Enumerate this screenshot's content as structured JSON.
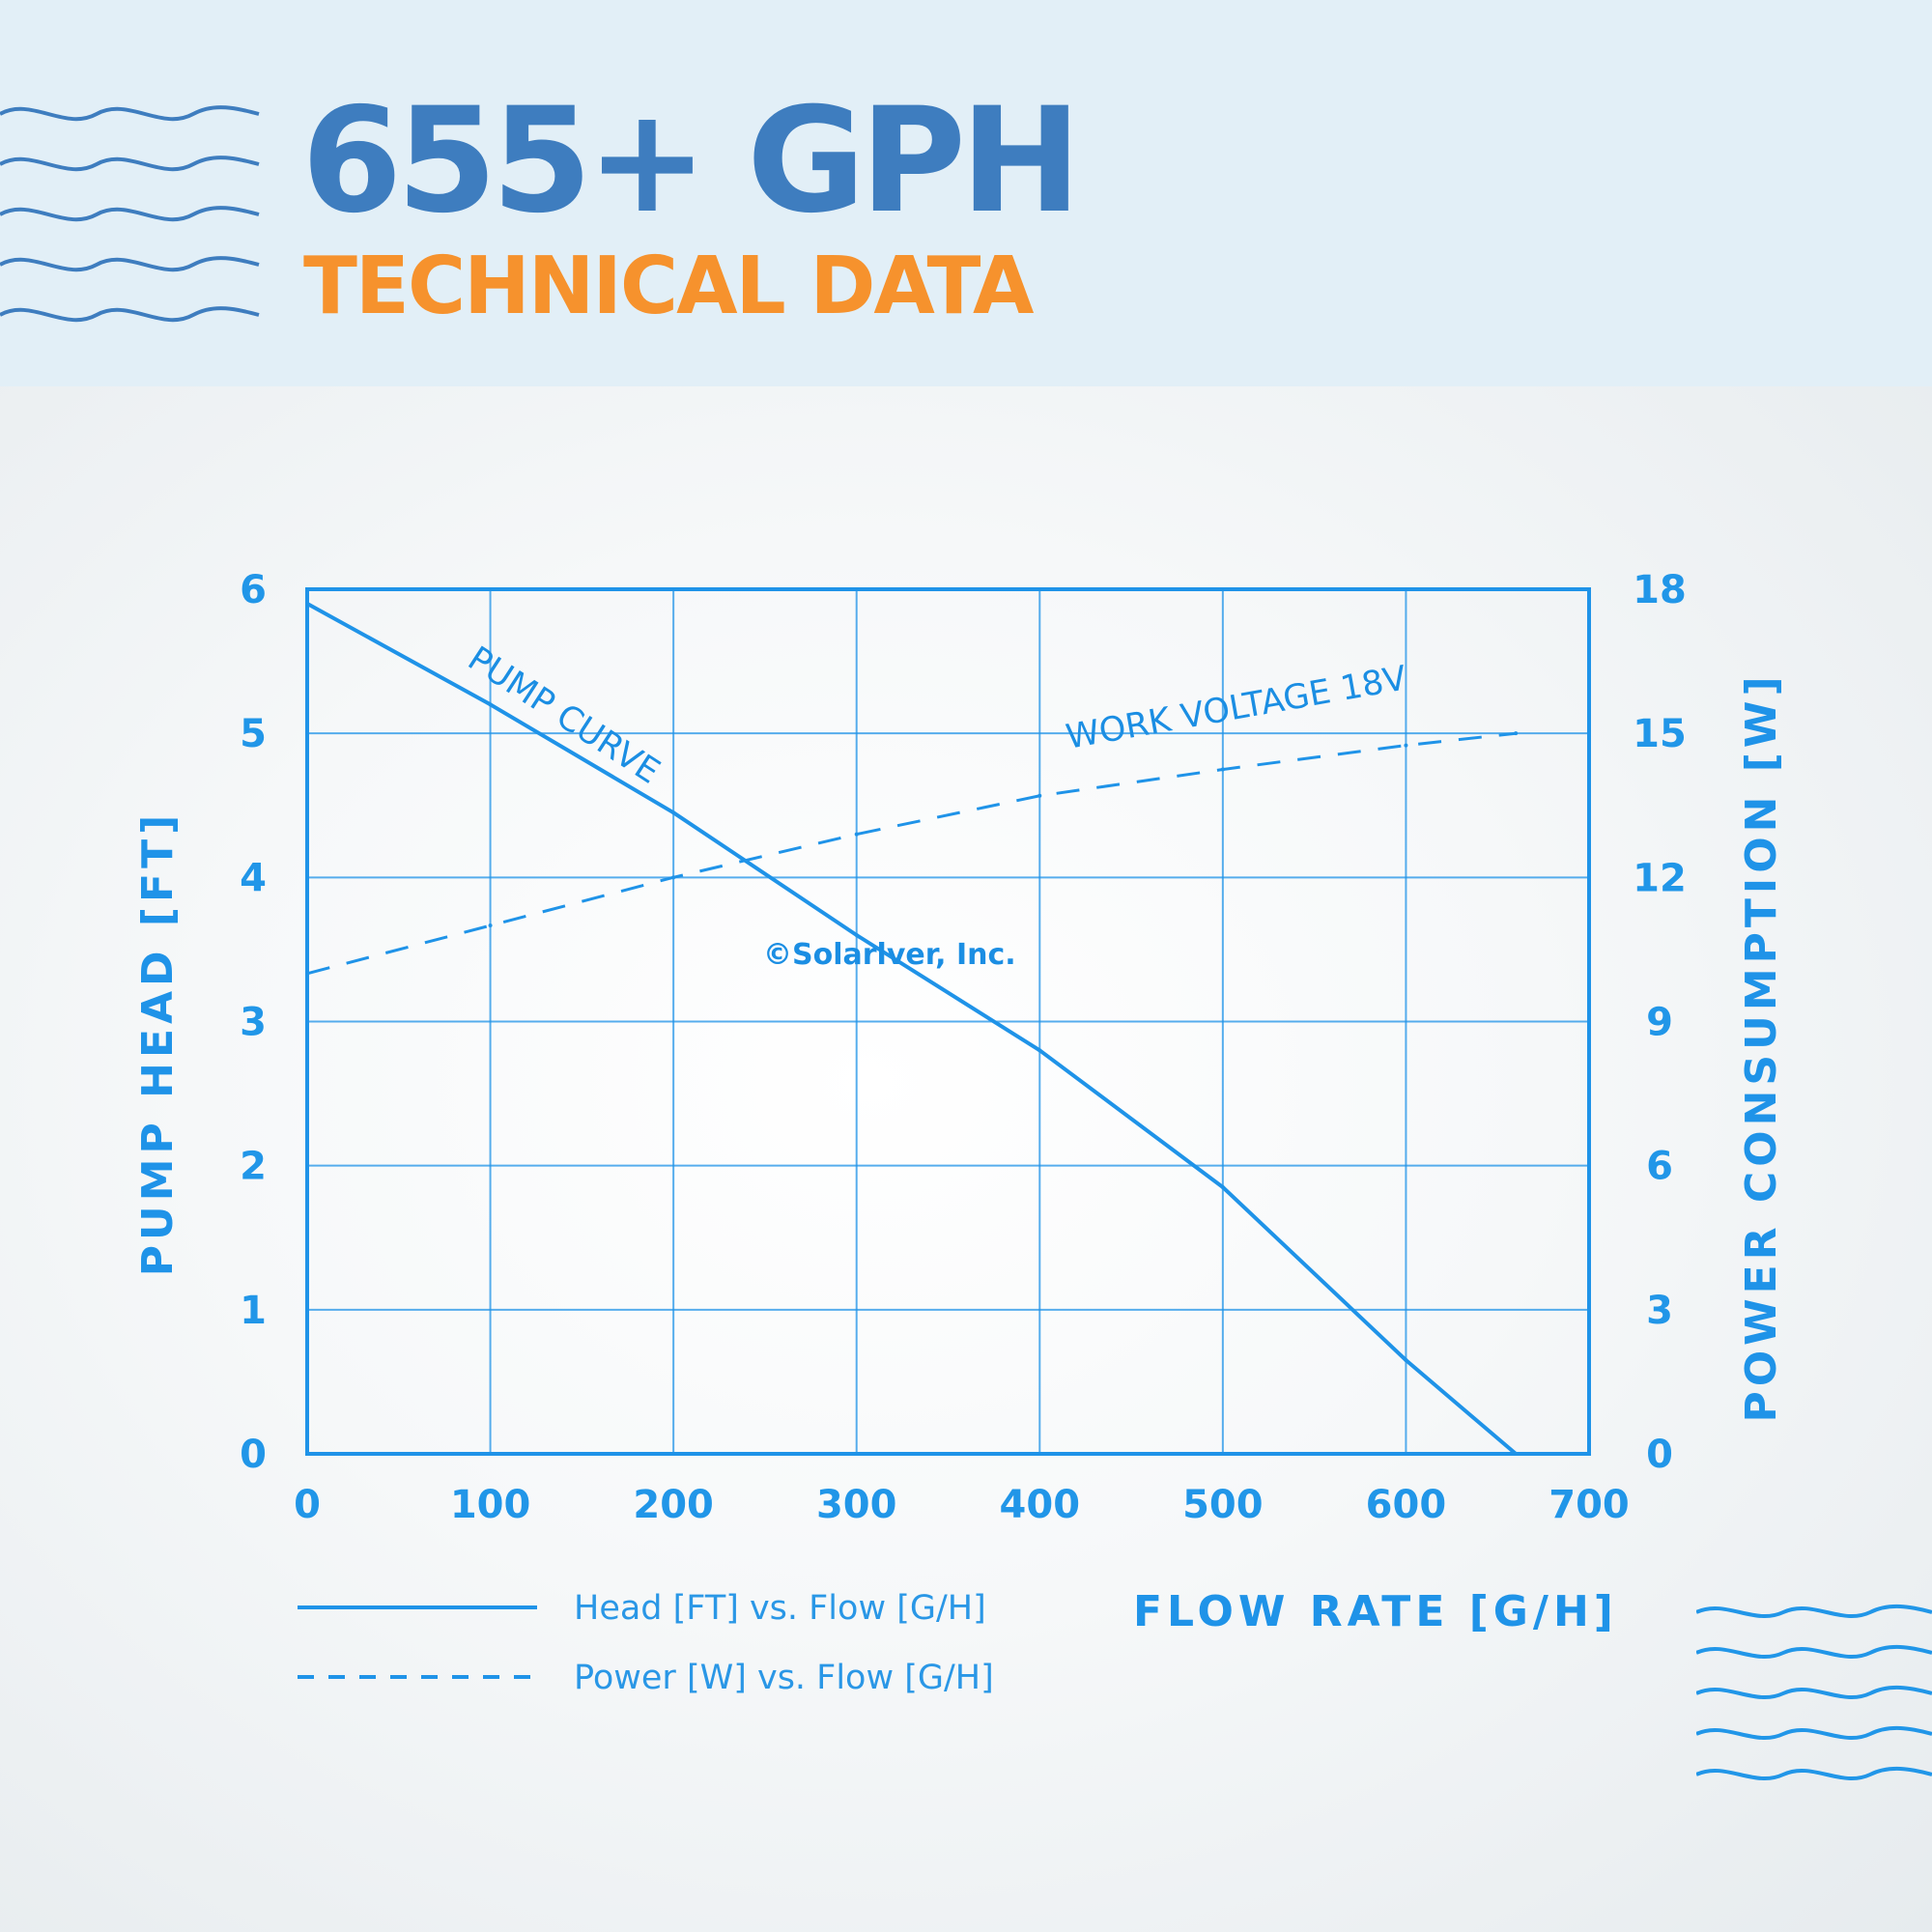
{
  "header": {
    "title": "655+ GPH",
    "subtitle": "TECHNICAL DATA"
  },
  "colors": {
    "header_bg": "#e2eff7",
    "title": "#3e7dbf",
    "subtitle": "#f6922d",
    "chart_blue": "#1f93e8",
    "wave": "#3e7dbf",
    "wave_bottom": "#2196e8"
  },
  "icons": [
    "wave-lines-icon",
    "wave-lines-icon"
  ],
  "chart_data": {
    "type": "line",
    "xlabel": "FLOW RATE [G/H]",
    "ylabel": "PUMP HEAD [FT]",
    "y2label": "POWER CONSUMPTION [W]",
    "xlim": [
      0,
      700
    ],
    "ylim": [
      0,
      6
    ],
    "y2lim": [
      0,
      18
    ],
    "x_ticks": [
      "0",
      "100",
      "200",
      "300",
      "400",
      "500",
      "600",
      "700"
    ],
    "y_ticks": [
      "0",
      "1",
      "2",
      "3",
      "4",
      "5",
      "6"
    ],
    "y2_ticks": [
      "0",
      "3",
      "6",
      "9",
      "12",
      "15",
      "18"
    ],
    "grid": true,
    "series": [
      {
        "name": "Head [FT] vs. Flow [G/H]",
        "axis": "left",
        "style": "solid",
        "x": [
          0,
          100,
          200,
          300,
          400,
          500,
          600,
          660
        ],
        "y": [
          5.9,
          5.2,
          4.45,
          3.6,
          2.8,
          1.85,
          0.65,
          0
        ]
      },
      {
        "name": "Power [W] vs. Flow [G/H]",
        "axis": "right",
        "style": "dashed",
        "x": [
          0,
          100,
          200,
          300,
          400,
          500,
          600,
          660
        ],
        "y": [
          10,
          11,
          12,
          12.9,
          13.7,
          14.25,
          14.75,
          15
        ]
      }
    ],
    "annotations": [
      "PUMP CURVE",
      "WORK VOLTAGE 18V"
    ],
    "watermark": "©Solarlver, Inc.",
    "legend_position": "bottom-left"
  }
}
